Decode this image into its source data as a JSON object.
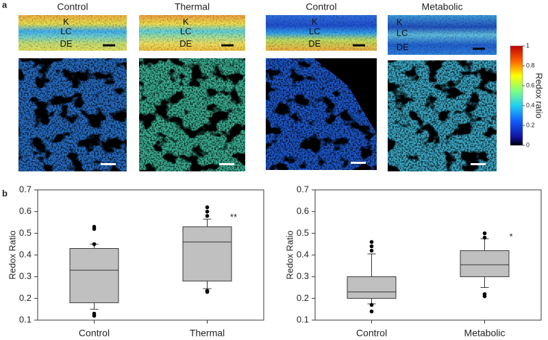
{
  "figure": {
    "panel_a": {
      "label": "a",
      "columns": [
        {
          "title": "Control",
          "layers": [
            "K",
            "LC",
            "DE"
          ]
        },
        {
          "title": "Thermal",
          "layers": [
            "K",
            "LC",
            "DE"
          ]
        },
        {
          "title": "Control",
          "layers": [
            "K",
            "LC",
            "DE"
          ]
        },
        {
          "title": "Metabolic",
          "layers": [
            "K",
            "LC",
            "DE"
          ]
        }
      ],
      "colorbar": {
        "label": "Redox ratio",
        "ticks": [
          0,
          0.2,
          0.4,
          0.6,
          0.8,
          1
        ],
        "lim": [
          0,
          1
        ]
      }
    },
    "panel_b": {
      "label": "b"
    }
  },
  "chart_data": [
    {
      "type": "box",
      "y_label": "Redox Ratio",
      "categories": [
        "Control",
        "Thermal"
      ],
      "ylim": [
        0.1,
        0.7
      ],
      "yticks": [
        0.1,
        0.2,
        0.3,
        0.4,
        0.5,
        0.6,
        0.7
      ],
      "color": "#c0c0c0",
      "boxes": [
        {
          "min": 0.15,
          "q1": 0.18,
          "median": 0.33,
          "q3": 0.43,
          "max": 0.45,
          "outliers": [
            0.53,
            0.52,
            0.45,
            0.13,
            0.12
          ]
        },
        {
          "min": 0.245,
          "q1": 0.28,
          "median": 0.46,
          "q3": 0.53,
          "max": 0.565,
          "outliers": [
            0.62,
            0.6,
            0.58,
            0.235,
            0.23
          ]
        }
      ],
      "annotations": [
        null,
        "**"
      ]
    },
    {
      "type": "box",
      "y_label": "Redox Ratio",
      "categories": [
        "Control",
        "Metabolic"
      ],
      "ylim": [
        0.1,
        0.7
      ],
      "yticks": [
        0.1,
        0.2,
        0.3,
        0.4,
        0.5,
        0.6,
        0.7
      ],
      "color": "#c0c0c0",
      "boxes": [
        {
          "min": 0.175,
          "q1": 0.2,
          "median": 0.23,
          "q3": 0.3,
          "max": 0.405,
          "outliers": [
            0.46,
            0.44,
            0.42,
            0.17,
            0.14
          ]
        },
        {
          "min": 0.25,
          "q1": 0.3,
          "median": 0.355,
          "q3": 0.42,
          "max": 0.475,
          "outliers": [
            0.5,
            0.48,
            0.22,
            0.21
          ]
        }
      ],
      "annotations": [
        null,
        "*"
      ]
    }
  ]
}
